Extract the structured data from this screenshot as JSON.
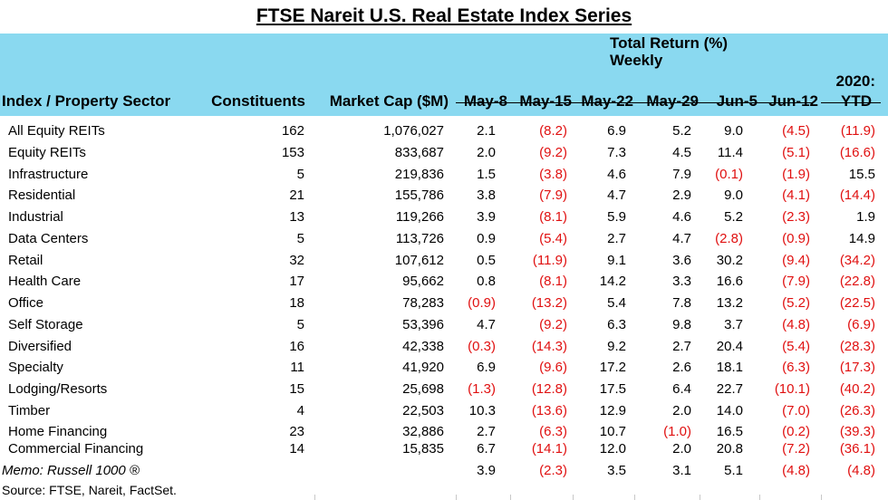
{
  "title": "FTSE Nareit U.S. Real Estate Index Series",
  "header": {
    "index_sector": "Index / Property Sector",
    "constituents": "Constituents",
    "market_cap": "Market Cap ($M)",
    "total_return_line1": "Total Return (%)",
    "total_return_line2": "Weekly",
    "ytd_line1": "2020:",
    "ytd_line2": "YTD",
    "weeks": [
      "May-8",
      "May-15",
      "May-22",
      "May-29",
      "Jun-5",
      "Jun-12"
    ]
  },
  "rows": [
    {
      "name": "All Equity REITs",
      "constituents": "162",
      "market_cap": "1,076,027",
      "returns": [
        "2.1",
        "(8.2)",
        "6.9",
        "5.2",
        "9.0",
        "(4.5)"
      ],
      "ytd": "(11.9)"
    },
    {
      "name": "Equity REITs",
      "constituents": "153",
      "market_cap": "833,687",
      "returns": [
        "2.0",
        "(9.2)",
        "7.3",
        "4.5",
        "11.4",
        "(5.1)"
      ],
      "ytd": "(16.6)"
    },
    {
      "name": "Infrastructure",
      "constituents": "5",
      "market_cap": "219,836",
      "returns": [
        "1.5",
        "(3.8)",
        "4.6",
        "7.9",
        "(0.1)",
        "(1.9)"
      ],
      "ytd": "15.5"
    },
    {
      "name": "Residential",
      "constituents": "21",
      "market_cap": "155,786",
      "returns": [
        "3.8",
        "(7.9)",
        "4.7",
        "2.9",
        "9.0",
        "(4.1)"
      ],
      "ytd": "(14.4)"
    },
    {
      "name": "Industrial",
      "constituents": "13",
      "market_cap": "119,266",
      "returns": [
        "3.9",
        "(8.1)",
        "5.9",
        "4.6",
        "5.2",
        "(2.3)"
      ],
      "ytd": "1.9"
    },
    {
      "name": "Data Centers",
      "constituents": "5",
      "market_cap": "113,726",
      "returns": [
        "0.9",
        "(5.4)",
        "2.7",
        "4.7",
        "(2.8)",
        "(0.9)"
      ],
      "ytd": "14.9"
    },
    {
      "name": "Retail",
      "constituents": "32",
      "market_cap": "107,612",
      "returns": [
        "0.5",
        "(11.9)",
        "9.1",
        "3.6",
        "30.2",
        "(9.4)"
      ],
      "ytd": "(34.2)"
    },
    {
      "name": "Health Care",
      "constituents": "17",
      "market_cap": "95,662",
      "returns": [
        "0.8",
        "(8.1)",
        "14.2",
        "3.3",
        "16.6",
        "(7.9)"
      ],
      "ytd": "(22.8)"
    },
    {
      "name": "Office",
      "constituents": "18",
      "market_cap": "78,283",
      "returns": [
        "(0.9)",
        "(13.2)",
        "5.4",
        "7.8",
        "13.2",
        "(5.2)"
      ],
      "ytd": "(22.5)"
    },
    {
      "name": "Self Storage",
      "constituents": "5",
      "market_cap": "53,396",
      "returns": [
        "4.7",
        "(9.2)",
        "6.3",
        "9.8",
        "3.7",
        "(4.8)"
      ],
      "ytd": "(6.9)"
    },
    {
      "name": "Diversified",
      "constituents": "16",
      "market_cap": "42,338",
      "returns": [
        "(0.3)",
        "(14.3)",
        "9.2",
        "2.7",
        "20.4",
        "(5.4)"
      ],
      "ytd": "(28.3)"
    },
    {
      "name": "Specialty",
      "constituents": "11",
      "market_cap": "41,920",
      "returns": [
        "6.9",
        "(9.6)",
        "17.2",
        "2.6",
        "18.1",
        "(6.3)"
      ],
      "ytd": "(17.3)"
    },
    {
      "name": "Lodging/Resorts",
      "constituents": "15",
      "market_cap": "25,698",
      "returns": [
        "(1.3)",
        "(12.8)",
        "17.5",
        "6.4",
        "22.7",
        "(10.1)"
      ],
      "ytd": "(40.2)"
    },
    {
      "name": "Timber",
      "constituents": "4",
      "market_cap": "22,503",
      "returns": [
        "10.3",
        "(13.6)",
        "12.9",
        "2.0",
        "14.0",
        "(7.0)"
      ],
      "ytd": "(26.3)"
    },
    {
      "name": "Home Financing",
      "constituents": "23",
      "market_cap": "32,886",
      "returns": [
        "2.7",
        "(6.3)",
        "10.7",
        "(1.0)",
        "16.5",
        "(0.2)"
      ],
      "ytd": "(39.3)"
    },
    {
      "name": "Commercial Financing",
      "constituents": "14",
      "market_cap": "15,835",
      "returns": [
        "6.7",
        "(14.1)",
        "12.0",
        "2.0",
        "20.8",
        "(7.2)"
      ],
      "ytd": "(36.1)"
    }
  ],
  "memo": {
    "label": "Memo: Russell 1000 ®",
    "returns": [
      "3.9",
      "(2.3)",
      "3.5",
      "3.1",
      "5.1",
      "(4.8)"
    ],
    "ytd": "(4.8)"
  },
  "source": "Source: FTSE, Nareit, FactSet.",
  "colors": {
    "header_bg": "#8ad9f0",
    "negative": "#e01010"
  }
}
